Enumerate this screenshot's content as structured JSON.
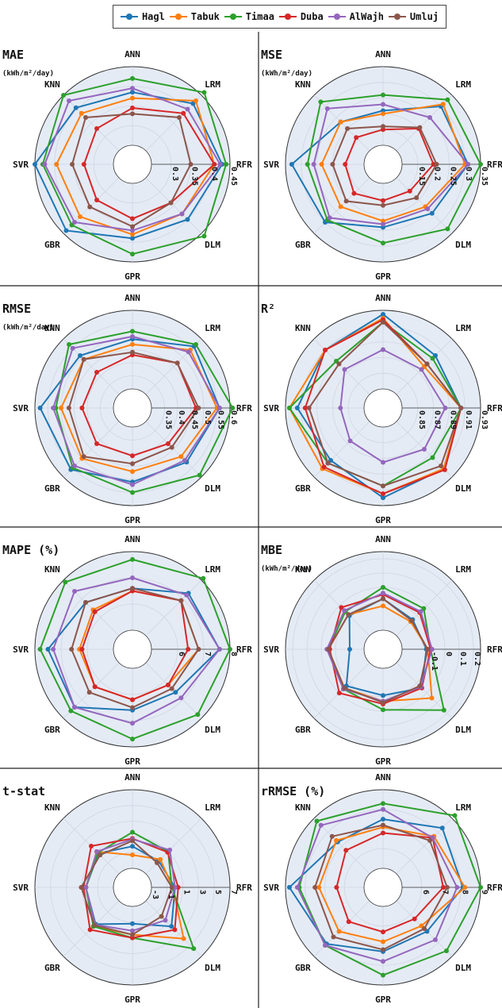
{
  "legend": {
    "items": [
      {
        "name": "Hagl",
        "color": "#1f77b4"
      },
      {
        "name": "Tabuk",
        "color": "#ff7f0e"
      },
      {
        "name": "Timaa",
        "color": "#2ca02c"
      },
      {
        "name": "Duba",
        "color": "#d62728"
      },
      {
        "name": "AlWajh",
        "color": "#9467bd"
      },
      {
        "name": "Umluj",
        "color": "#8c564b"
      }
    ]
  },
  "chart_data": [
    {
      "type": "radar",
      "title": "MAE",
      "unit": "(kWh/m²/day)",
      "categories": [
        "ANN",
        "LRM",
        "RFR",
        "DLM",
        "GPR",
        "GBR",
        "SVR",
        "KNN"
      ],
      "rlim": [
        0.25,
        0.45
      ],
      "rticks": [
        "0.3",
        "0.35",
        "0.4",
        "0.45"
      ],
      "series": [
        {
          "name": "Hagl",
          "values": [
            0.385,
            0.42,
            0.43,
            0.4,
            0.39,
            0.44,
            0.45,
            0.405
          ]
        },
        {
          "name": "Tabuk",
          "values": [
            0.37,
            0.43,
            0.41,
            0.38,
            0.38,
            0.39,
            0.395,
            0.385
          ]
        },
        {
          "name": "Timaa",
          "values": [
            0.42,
            0.46,
            0.44,
            0.46,
            0.43,
            0.42,
            0.43,
            0.45
          ]
        },
        {
          "name": "Duba",
          "values": [
            0.345,
            0.385,
            0.41,
            0.34,
            0.34,
            0.33,
            0.325,
            0.33
          ]
        },
        {
          "name": "AlWajh",
          "values": [
            0.395,
            0.4,
            0.425,
            0.38,
            0.37,
            0.41,
            0.425,
            0.43
          ]
        },
        {
          "name": "Umluj",
          "values": [
            0.33,
            0.37,
            0.35,
            0.34,
            0.36,
            0.355,
            0.355,
            0.37
          ]
        }
      ]
    },
    {
      "type": "radar",
      "title": "MSE",
      "unit": "(kWh/m²/day)",
      "categories": [
        "ANN",
        "LRM",
        "RFR",
        "DLM",
        "GPR",
        "GBR",
        "SVR",
        "KNN"
      ],
      "rlim": [
        0.1,
        0.35
      ],
      "rticks": [
        "0.15",
        "0.2",
        "0.25",
        "0.3",
        "0.35"
      ],
      "series": [
        {
          "name": "Hagl",
          "values": [
            0.21,
            0.3,
            0.31,
            0.26,
            0.24,
            0.3,
            0.33,
            0.23
          ]
        },
        {
          "name": "Tabuk",
          "values": [
            0.2,
            0.31,
            0.3,
            0.23,
            0.22,
            0.23,
            0.235,
            0.23
          ]
        },
        {
          "name": "Timaa",
          "values": [
            0.26,
            0.33,
            0.35,
            0.33,
            0.29,
            0.29,
            0.28,
            0.32
          ]
        },
        {
          "name": "Duba",
          "values": [
            0.15,
            0.2,
            0.2,
            0.16,
            0.155,
            0.17,
            0.16,
            0.16
          ]
        },
        {
          "name": "AlWajh",
          "values": [
            0.23,
            0.25,
            0.31,
            0.24,
            0.23,
            0.28,
            0.26,
            0.29
          ]
        },
        {
          "name": "Umluj",
          "values": [
            0.16,
            0.205,
            0.21,
            0.19,
            0.17,
            0.205,
            0.2,
            0.2
          ]
        }
      ]
    },
    {
      "type": "radar",
      "title": "RMSE",
      "unit": "(kWh/m²/day)",
      "categories": [
        "ANN",
        "LRM",
        "RFR",
        "DLM",
        "GPR",
        "GBR",
        "SVR",
        "KNN"
      ],
      "rlim": [
        0.3,
        0.6
      ],
      "rticks": [
        "0.35",
        "0.4",
        "0.45",
        "0.5",
        "0.55",
        "0.6"
      ],
      "series": [
        {
          "name": "Hagl",
          "values": [
            0.49,
            0.56,
            0.56,
            0.52,
            0.51,
            0.56,
            0.58,
            0.51
          ]
        },
        {
          "name": "Tabuk",
          "values": [
            0.47,
            0.54,
            0.55,
            0.49,
            0.47,
            0.5,
            0.5,
            0.49
          ]
        },
        {
          "name": "Timaa",
          "values": [
            0.52,
            0.57,
            0.61,
            0.59,
            0.55,
            0.55,
            0.52,
            0.57
          ]
        },
        {
          "name": "Duba",
          "values": [
            0.43,
            0.47,
            0.47,
            0.42,
            0.41,
            0.42,
            0.42,
            0.42
          ]
        },
        {
          "name": "AlWajh",
          "values": [
            0.5,
            0.53,
            0.56,
            0.51,
            0.52,
            0.54,
            0.53,
            0.55
          ]
        },
        {
          "name": "Umluj",
          "values": [
            0.44,
            0.47,
            0.48,
            0.44,
            0.44,
            0.49,
            0.47,
            0.49
          ]
        }
      ]
    },
    {
      "type": "radar",
      "title": "R²",
      "unit": "",
      "categories": [
        "ANN",
        "LRM",
        "RFR",
        "DLM",
        "GPR",
        "GBR",
        "SVR",
        "KNN"
      ],
      "rlim": [
        0.83,
        0.93
      ],
      "rticks": [
        "0.85",
        "0.87",
        "0.89",
        "0.91",
        "0.93"
      ],
      "series": [
        {
          "name": "Hagl",
          "values": [
            0.925,
            0.9,
            0.905,
            0.915,
            0.92,
            0.9,
            0.915,
            0.91
          ]
        },
        {
          "name": "Tabuk",
          "values": [
            0.92,
            0.88,
            0.905,
            0.915,
            0.915,
            0.915,
            0.925,
            0.91
          ]
        },
        {
          "name": "Timaa",
          "values": [
            0.915,
            0.895,
            0.905,
            0.895,
            0.905,
            0.905,
            0.925,
            0.89
          ]
        },
        {
          "name": "Duba",
          "values": [
            0.918,
            0.885,
            0.905,
            0.917,
            0.915,
            0.912,
            0.905,
            0.91
          ]
        },
        {
          "name": "AlWajh",
          "values": [
            0.88,
            0.875,
            0.885,
            0.88,
            0.875,
            0.865,
            0.86,
            0.875
          ]
        },
        {
          "name": "Umluj",
          "values": [
            0.915,
            0.885,
            0.905,
            0.91,
            0.905,
            0.905,
            0.9,
            0.885
          ]
        }
      ]
    },
    {
      "type": "radar",
      "title": "MAPE (%)",
      "unit": "",
      "categories": [
        "ANN",
        "LRM",
        "RFR",
        "DLM",
        "GPR",
        "GBR",
        "SVR",
        "KNN"
      ],
      "rlim": [
        5,
        8
      ],
      "rticks": [
        "6",
        "7",
        "8"
      ],
      "series": [
        {
          "name": "Hagl",
          "values": [
            6.6,
            7.3,
            7.6,
            6.6,
            6.6,
            7.4,
            7.5,
            6.8
          ]
        },
        {
          "name": "Tabuk",
          "values": [
            6.5,
            6.9,
            6.8,
            6.2,
            6.2,
            6.3,
            6.3,
            6.4
          ]
        },
        {
          "name": "Timaa",
          "values": [
            7.7,
            8.1,
            8.0,
            7.8,
            7.7,
            7.6,
            7.8,
            7.9
          ]
        },
        {
          "name": "Duba",
          "values": [
            6.5,
            6.9,
            6.4,
            6.2,
            6.2,
            6.3,
            6.2,
            6.3
          ]
        },
        {
          "name": "AlWajh",
          "values": [
            7.0,
            7.2,
            7.6,
            6.9,
            7.1,
            7.4,
            7.3,
            7.4
          ]
        },
        {
          "name": "Umluj",
          "values": [
            6.6,
            6.9,
            6.8,
            6.4,
            6.5,
            6.6,
            6.6,
            6.8
          ]
        }
      ]
    },
    {
      "type": "radar",
      "title": "MBE",
      "unit": "(kWh/m²/day)",
      "categories": [
        "ANN",
        "LRM",
        "RFR",
        "DLM",
        "GPR",
        "GBR",
        "SVR",
        "KNN"
      ],
      "rlim": [
        -0.3,
        0.25
      ],
      "rticks": [
        "-0.1",
        "0",
        "0.1",
        "0.2"
      ],
      "series": [
        {
          "name": "Hagl",
          "values": [
            -0.08,
            -0.14,
            -0.13,
            -0.05,
            -0.11,
            -0.07,
            -0.2,
            -0.1
          ]
        },
        {
          "name": "Tabuk",
          "values": [
            -0.13,
            -0.16,
            -0.12,
            0.05,
            -0.07,
            -0.05,
            -0.05,
            -0.09
          ]
        },
        {
          "name": "Timaa",
          "values": [
            0.0,
            -0.03,
            -0.1,
            0.17,
            -0.01,
            -0.04,
            -0.05,
            -0.06
          ]
        },
        {
          "name": "Duba",
          "values": [
            -0.05,
            -0.07,
            -0.1,
            -0.05,
            -0.05,
            0.0,
            -0.06,
            -0.02
          ]
        },
        {
          "name": "AlWajh",
          "values": [
            -0.04,
            -0.06,
            -0.09,
            -0.06,
            -0.07,
            -0.04,
            -0.04,
            -0.05
          ]
        },
        {
          "name": "Umluj",
          "values": [
            -0.08,
            -0.15,
            -0.12,
            -0.07,
            -0.06,
            -0.05,
            -0.05,
            -0.09
          ]
        }
      ]
    },
    {
      "type": "radar",
      "title": "t-stat",
      "unit": "",
      "categories": [
        "ANN",
        "LRM",
        "RFR",
        "DLM",
        "GPR",
        "GBR",
        "SVR",
        "KNN"
      ],
      "rlim": [
        -3,
        7
      ],
      "rticks": [
        "-3",
        "-1",
        "1",
        "3",
        "5",
        "7"
      ],
      "series": [
        {
          "name": "Hagl",
          "values": [
            -0.2,
            -0.7,
            0.0,
            1.6,
            -0.8,
            1.2,
            0.5,
            0.7
          ]
        },
        {
          "name": "Tabuk",
          "values": [
            -1.3,
            -0.4,
            -0.3,
            3.8,
            0.6,
            1.6,
            0.5,
            1.0
          ]
        },
        {
          "name": "Timaa",
          "values": [
            1.6,
            1.0,
            -0.4,
            5.6,
            1.0,
            1.6,
            0.5,
            0.8
          ]
        },
        {
          "name": "Duba",
          "values": [
            0.8,
            0.9,
            0.4,
            2.2,
            1.0,
            2.2,
            0.8,
            2.0
          ]
        },
        {
          "name": "AlWajh",
          "values": [
            0.7,
            1.3,
            0.0,
            0.5,
            0.1,
            1.3,
            0.5,
            1.0
          ]
        },
        {
          "name": "Umluj",
          "values": [
            0.5,
            -1.0,
            -0.4,
            -0.2,
            0.6,
            1.4,
            1.1,
            0.4
          ]
        }
      ]
    },
    {
      "type": "radar",
      "title": "rRMSE (%)",
      "unit": "",
      "categories": [
        "ANN",
        "LRM",
        "RFR",
        "DLM",
        "GPR",
        "GBR",
        "SVR",
        "KNN"
      ],
      "rlim": [
        5,
        9
      ],
      "rticks": [
        "6",
        "7",
        "8",
        "9"
      ],
      "series": [
        {
          "name": "Hagl",
          "values": [
            7.5,
            8.3,
            8.1,
            7.2,
            7.3,
            8.1,
            8.8,
            7.3
          ]
        },
        {
          "name": "Tabuk",
          "values": [
            7.1,
            7.7,
            8.2,
            6.8,
            6.8,
            7.2,
            7.3,
            7.4
          ]
        },
        {
          "name": "Timaa",
          "values": [
            8.3,
            9.2,
            9.0,
            8.6,
            8.5,
            8.2,
            8.3,
            8.8
          ]
        },
        {
          "name": "Duba",
          "values": [
            6.8,
            7.6,
            7.1,
            6.3,
            6.3,
            6.5,
            6.4,
            6.7
          ]
        },
        {
          "name": "AlWajh",
          "values": [
            8.0,
            7.6,
            7.8,
            7.8,
            7.8,
            8.2,
            8.4,
            8.5
          ]
        },
        {
          "name": "Umluj",
          "values": [
            7.2,
            7.4,
            7.3,
            7.0,
            7.2,
            7.6,
            7.5,
            7.7
          ]
        }
      ]
    }
  ]
}
